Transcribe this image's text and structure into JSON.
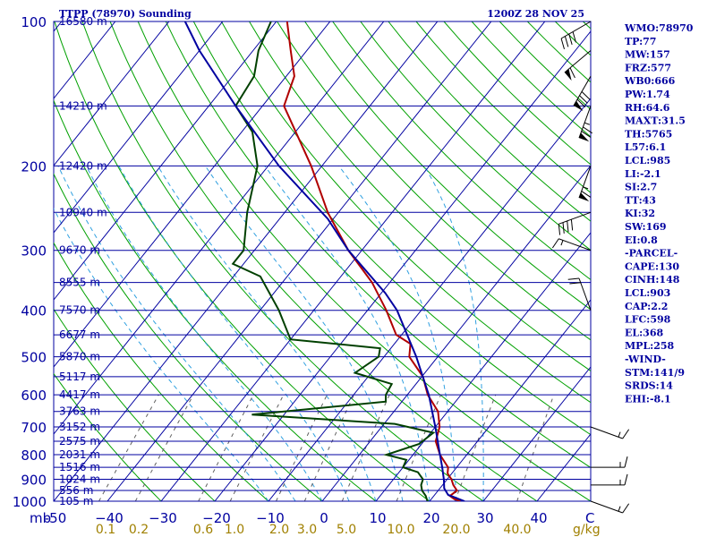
{
  "chart_data": {
    "type": "line",
    "title_left": "TTPP (78970) Sounding",
    "title_right": "1200Z 28 NOV 25",
    "ylabel": "mb",
    "xunit": "C",
    "mix_unit": "g/kg",
    "pressure_levels": [
      100,
      200,
      300,
      400,
      500,
      600,
      700,
      800,
      900,
      1000
    ],
    "pressure_tick_labels": [
      "100",
      "200",
      "300",
      "400",
      "500",
      "600",
      "700",
      "800",
      "900",
      "1000"
    ],
    "height_labels": [
      {
        "p": 100,
        "text": "16580 m"
      },
      {
        "p": 150,
        "text": "14210 m"
      },
      {
        "p": 200,
        "text": "12420 m"
      },
      {
        "p": 250,
        "text": "10940 m"
      },
      {
        "p": 300,
        "text": "9670 m"
      },
      {
        "p": 350,
        "text": "8555 m"
      },
      {
        "p": 400,
        "text": "7570 m"
      },
      {
        "p": 450,
        "text": "6677 m"
      },
      {
        "p": 500,
        "text": "5870 m"
      },
      {
        "p": 550,
        "text": "5117 m"
      },
      {
        "p": 600,
        "text": "4417 m"
      },
      {
        "p": 650,
        "text": "3763 m"
      },
      {
        "p": 700,
        "text": "3152 m"
      },
      {
        "p": 750,
        "text": "2575 m"
      },
      {
        "p": 800,
        "text": "2031 m"
      },
      {
        "p": 850,
        "text": "1516 m"
      },
      {
        "p": 900,
        "text": "1024 m"
      },
      {
        "p": 950,
        "text": "556 m"
      },
      {
        "p": 1000,
        "text": "105 m"
      }
    ],
    "temp_ticks": [
      -50,
      -40,
      -30,
      -20,
      -10,
      0,
      10,
      20,
      30,
      40
    ],
    "temp_tick_labels": [
      "-50",
      "−40",
      "−30",
      "−20",
      "−10",
      "0",
      "10",
      "20",
      "30",
      "40"
    ],
    "mixing_ratio_labels": [
      "0.1",
      "0.2",
      "0.6",
      "1.0",
      "2.0",
      "3.0",
      "5.0",
      "10.0",
      "20.0",
      "40.0"
    ],
    "mixing_ratio_values": [
      0.1,
      0.2,
      0.6,
      1.0,
      2.0,
      3.0,
      5.0,
      10.0,
      20.0,
      40.0
    ],
    "xlim": [
      -50,
      50
    ],
    "ylim": [
      100,
      1000
    ],
    "series": [
      {
        "name": "temperature",
        "color": "#b00000",
        "points": [
          [
            1000,
            25.8
          ],
          [
            990,
            24.3
          ],
          [
            975,
            23.0
          ],
          [
            950,
            23.5
          ],
          [
            925,
            22.0
          ],
          [
            900,
            20.8
          ],
          [
            875,
            19.2
          ],
          [
            850,
            18.4
          ],
          [
            800,
            15.0
          ],
          [
            750,
            12.2
          ],
          [
            700,
            10.8
          ],
          [
            650,
            8.2
          ],
          [
            600,
            3.8
          ],
          [
            550,
            0.2
          ],
          [
            500,
            -5.3
          ],
          [
            470,
            -7.0
          ],
          [
            450,
            -11.0
          ],
          [
            400,
            -16.5
          ],
          [
            350,
            -23.3
          ],
          [
            300,
            -32.5
          ],
          [
            250,
            -42.0
          ],
          [
            200,
            -52.0
          ],
          [
            150,
            -66.0
          ],
          [
            130,
            -68.5
          ],
          [
            115,
            -73.0
          ],
          [
            100,
            -78.0
          ]
        ]
      },
      {
        "name": "dewpoint",
        "color": "#004000",
        "points": [
          [
            1000,
            19.6
          ],
          [
            975,
            18.5
          ],
          [
            950,
            17.0
          ],
          [
            925,
            16.0
          ],
          [
            900,
            15.5
          ],
          [
            870,
            13.5
          ],
          [
            850,
            10.0
          ],
          [
            820,
            9.5
          ],
          [
            800,
            5.0
          ],
          [
            760,
            9.5
          ],
          [
            720,
            10.5
          ],
          [
            690,
            2.0
          ],
          [
            660,
            -26.0
          ],
          [
            620,
            -3.0
          ],
          [
            600,
            -4.0
          ],
          [
            570,
            -4.5
          ],
          [
            540,
            -13.0
          ],
          [
            500,
            -11.0
          ],
          [
            480,
            -12.0
          ],
          [
            460,
            -30.0
          ],
          [
            400,
            -36.5
          ],
          [
            340,
            -45.0
          ],
          [
            320,
            -52.0
          ],
          [
            300,
            -52.0
          ],
          [
            250,
            -57.0
          ],
          [
            200,
            -62.0
          ],
          [
            170,
            -68.0
          ],
          [
            150,
            -75.0
          ],
          [
            130,
            -76.0
          ],
          [
            115,
            -79.0
          ],
          [
            100,
            -81.0
          ]
        ]
      },
      {
        "name": "parcel",
        "color": "#0000a0",
        "points": [
          [
            1000,
            26.5
          ],
          [
            970,
            22.5
          ],
          [
            940,
            20.8
          ],
          [
            903,
            19.5
          ],
          [
            850,
            17.3
          ],
          [
            800,
            15.0
          ],
          [
            700,
            10.0
          ],
          [
            600,
            4.0
          ],
          [
            500,
            -4.0
          ],
          [
            400,
            -14.5
          ],
          [
            368,
            -19.3
          ],
          [
            300,
            -32.5
          ],
          [
            258,
            -41.0
          ],
          [
            200,
            -58.0
          ],
          [
            150,
            -75.0
          ],
          [
            115,
            -90.0
          ],
          [
            100,
            -97.0
          ]
        ]
      }
    ],
    "wind_barbs": [
      {
        "p": 1000,
        "dir": 110,
        "spd": 15
      },
      {
        "p": 925,
        "dir": 90,
        "spd": 15
      },
      {
        "p": 850,
        "dir": 90,
        "spd": 15
      },
      {
        "p": 700,
        "dir": 110,
        "spd": 15
      },
      {
        "p": 400,
        "dir": 340,
        "spd": 20
      },
      {
        "p": 300,
        "dir": 290,
        "spd": 15
      },
      {
        "p": 250,
        "dir": 250,
        "spd": 40
      },
      {
        "p": 200,
        "dir": 200,
        "spd": 65
      },
      {
        "p": 150,
        "dir": 200,
        "spd": 75
      },
      {
        "p": 130,
        "dir": 210,
        "spd": 80
      },
      {
        "p": 115,
        "dir": 230,
        "spd": 60
      },
      {
        "p": 100,
        "dir": 240,
        "spd": 40
      }
    ],
    "indices": [
      "WMO:78970",
      "TP:77",
      "MW:157",
      "FRZ:577",
      "WB0:666",
      "PW:1.74",
      "RH:64.6",
      "MAXT:31.5",
      "TH:5765",
      "L57:6.1",
      "LCL:985",
      "LI:-2.1",
      "SI:2.7",
      "TT:43",
      "KI:32",
      "SW:169",
      "EI:0.8",
      "-PARCEL-",
      "CAPE:130",
      "CINH:148",
      "LCL:903",
      "CAP:2.2",
      "LFC:598",
      "EL:368",
      "MPL:258",
      "-WIND-",
      "STM:141/9",
      "SRDS:14",
      "EHI:-8.1"
    ],
    "colors": {
      "frame": "#0000a0",
      "isobar": "#0000a0",
      "isotherm": "#0000a0",
      "dry_adiabat": "#00a000",
      "moist_adiabat": "#30a0e0",
      "mixing_ratio": "#606060",
      "barb": "#000000",
      "mix_label": "#a08000"
    }
  }
}
